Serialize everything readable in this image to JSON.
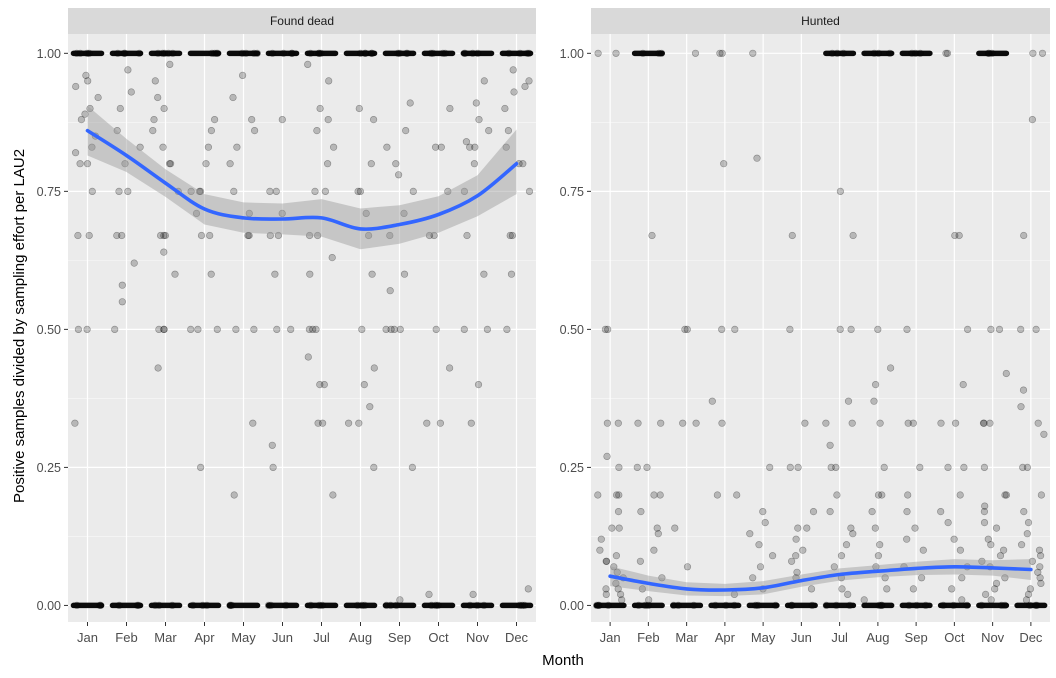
{
  "chart_data": {
    "type": "scatter",
    "ylabel": "Positive samples divided by sampling effort per LAU2",
    "xlabel": "Month",
    "categories": [
      "Jan",
      "Feb",
      "Mar",
      "Apr",
      "May",
      "Jun",
      "Jul",
      "Aug",
      "Sep",
      "Oct",
      "Nov",
      "Dec"
    ],
    "ylim": [
      -0.03,
      1.035
    ],
    "yticks": [
      0.0,
      0.25,
      0.5,
      0.75,
      1.0
    ],
    "ytick_labels": [
      "0.00",
      "0.25",
      "0.50",
      "0.75",
      "1.00"
    ],
    "grid": true,
    "colors": {
      "panel_bg": "#ebebeb",
      "strip_bg": "#d9d9d9",
      "grid_major": "#ffffff",
      "points": "#000000",
      "smooth_line": "#3366ff",
      "ribbon": "#999999"
    },
    "panels": [
      {
        "strip": "Found dead",
        "points": {
          "Jan": [
            1,
            1,
            1,
            1,
            0.96,
            0.95,
            0.94,
            0.92,
            0.9,
            0.89,
            0.88,
            0.85,
            0.83,
            0.82,
            0.8,
            0.8,
            0.75,
            0.67,
            0.67,
            0.5,
            0.5,
            0.33,
            0,
            0,
            0
          ],
          "Feb": [
            1,
            1,
            1,
            1,
            0.97,
            0.93,
            0.9,
            0.86,
            0.83,
            0.8,
            0.75,
            0.75,
            0.67,
            0.67,
            0.62,
            0.58,
            0.55,
            0.5,
            0,
            0,
            0
          ],
          "Mar": [
            1,
            1,
            1,
            1,
            1,
            0.98,
            0.95,
            0.92,
            0.9,
            0.88,
            0.86,
            0.83,
            0.8,
            0.8,
            0.75,
            0.67,
            0.67,
            0.67,
            0.64,
            0.6,
            0.5,
            0.5,
            0.5,
            0.43,
            0,
            0,
            0
          ],
          "Apr": [
            1,
            1,
            1,
            1,
            0.88,
            0.86,
            0.83,
            0.8,
            0.75,
            0.75,
            0.75,
            0.71,
            0.67,
            0.67,
            0.6,
            0.5,
            0.5,
            0.5,
            0.25,
            0,
            0,
            0
          ],
          "May": [
            1,
            1,
            1,
            1,
            0.96,
            0.92,
            0.88,
            0.86,
            0.83,
            0.8,
            0.75,
            0.71,
            0.67,
            0.67,
            0.5,
            0.5,
            0.33,
            0.2,
            0,
            0,
            0
          ],
          "Jun": [
            1,
            1,
            1,
            1,
            0.88,
            0.75,
            0.75,
            0.71,
            0.67,
            0.67,
            0.6,
            0.5,
            0.5,
            0.29,
            0.25,
            0,
            0,
            0
          ],
          "Jul": [
            1,
            1,
            1,
            1,
            0.98,
            0.95,
            0.9,
            0.88,
            0.86,
            0.83,
            0.8,
            0.75,
            0.75,
            0.67,
            0.67,
            0.63,
            0.6,
            0.5,
            0.5,
            0.5,
            0.45,
            0.4,
            0.4,
            0.33,
            0.33,
            0.2,
            0,
            0,
            0
          ],
          "Aug": [
            1,
            1,
            1,
            1,
            1,
            0.9,
            0.88,
            0.8,
            0.75,
            0.75,
            0.71,
            0.67,
            0.6,
            0.5,
            0.43,
            0.4,
            0.36,
            0.33,
            0.33,
            0.25,
            0,
            0,
            0
          ],
          "Sep": [
            1,
            1,
            1,
            1,
            0.91,
            0.86,
            0.83,
            0.8,
            0.78,
            0.75,
            0.71,
            0.67,
            0.6,
            0.57,
            0.5,
            0.5,
            0.5,
            0.5,
            0.25,
            0.01,
            0,
            0,
            0
          ],
          "Oct": [
            1,
            1,
            1,
            1,
            0.9,
            0.83,
            0.83,
            0.75,
            0.67,
            0.67,
            0.5,
            0.43,
            0.33,
            0.33,
            0.02,
            0,
            0,
            0
          ],
          "Nov": [
            1,
            1,
            1,
            1,
            0.95,
            0.91,
            0.88,
            0.86,
            0.84,
            0.83,
            0.83,
            0.8,
            0.75,
            0.67,
            0.6,
            0.5,
            0.5,
            0.4,
            0.33,
            0.02,
            0,
            0,
            0
          ],
          "Dec": [
            1,
            1,
            1,
            1,
            0.97,
            0.95,
            0.94,
            0.93,
            0.9,
            0.86,
            0.83,
            0.8,
            0.8,
            0.75,
            0.67,
            0.67,
            0.6,
            0.5,
            0.03,
            0,
            0,
            0
          ]
        },
        "smooth": [
          0.86,
          0.815,
          0.765,
          0.718,
          0.702,
          0.7,
          0.702,
          0.682,
          0.69,
          0.708,
          0.742,
          0.8
        ],
        "ribbon_lower": [
          0.815,
          0.785,
          0.74,
          0.69,
          0.675,
          0.672,
          0.668,
          0.645,
          0.655,
          0.675,
          0.705,
          0.745
        ],
        "ribbon_upper": [
          0.905,
          0.845,
          0.79,
          0.745,
          0.73,
          0.728,
          0.736,
          0.719,
          0.725,
          0.741,
          0.779,
          0.862
        ]
      },
      {
        "strip": "Hunted",
        "points": {
          "Jan": [
            1,
            1,
            0.5,
            0.5,
            0.33,
            0.33,
            0.27,
            0.25,
            0.2,
            0.2,
            0.2,
            0.17,
            0.14,
            0.14,
            0.12,
            0.1,
            0.09,
            0.08,
            0.08,
            0.07,
            0.06,
            0.05,
            0.04,
            0.03,
            0.03,
            0.02,
            0.02,
            0.01,
            0,
            0,
            0,
            0
          ],
          "Feb": [
            1,
            1,
            1,
            0.67,
            0.33,
            0.33,
            0.25,
            0.25,
            0.2,
            0.2,
            0.17,
            0.14,
            0.13,
            0.1,
            0.08,
            0.05,
            0.03,
            0.01,
            0,
            0,
            0
          ],
          "Mar": [
            1,
            0.5,
            0.5,
            0.33,
            0.33,
            0.14,
            0.07,
            0,
            0,
            0
          ],
          "Apr": [
            1,
            1,
            0.8,
            0.5,
            0.5,
            0.37,
            0.33,
            0.2,
            0.2,
            0.02,
            0,
            0,
            0
          ],
          "May": [
            1,
            0.81,
            0.25,
            0.17,
            0.15,
            0.13,
            0.11,
            0.09,
            0.07,
            0.05,
            0.03,
            0,
            0,
            0
          ],
          "Jun": [
            0.67,
            0.5,
            0.33,
            0.25,
            0.25,
            0.17,
            0.14,
            0.14,
            0.12,
            0.1,
            0.09,
            0.08,
            0.06,
            0.05,
            0.03,
            0,
            0,
            0
          ],
          "Jul": [
            1,
            1,
            1,
            0.75,
            0.67,
            0.5,
            0.5,
            0.37,
            0.33,
            0.33,
            0.29,
            0.25,
            0.25,
            0.2,
            0.17,
            0.14,
            0.13,
            0.11,
            0.09,
            0.07,
            0.05,
            0.03,
            0.02,
            0,
            0,
            0
          ],
          "Aug": [
            1,
            1,
            1,
            0.5,
            0.43,
            0.4,
            0.37,
            0.33,
            0.25,
            0.2,
            0.2,
            0.17,
            0.14,
            0.11,
            0.09,
            0.07,
            0.05,
            0.03,
            0.01,
            0,
            0,
            0
          ],
          "Sep": [
            1,
            1,
            1,
            0.5,
            0.33,
            0.33,
            0.25,
            0.2,
            0.17,
            0.14,
            0.12,
            0.1,
            0.07,
            0.05,
            0.03,
            0,
            0,
            0
          ],
          "Oct": [
            1,
            1,
            0.67,
            0.67,
            0.5,
            0.4,
            0.33,
            0.33,
            0.25,
            0.25,
            0.2,
            0.17,
            0.15,
            0.12,
            0.1,
            0.07,
            0.05,
            0.03,
            0.01,
            0,
            0,
            0
          ],
          "Nov": [
            1,
            1,
            1,
            0.5,
            0.5,
            0.42,
            0.33,
            0.33,
            0.33,
            0.25,
            0.2,
            0.2,
            0.18,
            0.17,
            0.15,
            0.14,
            0.12,
            0.11,
            0.1,
            0.09,
            0.08,
            0.07,
            0.05,
            0.04,
            0.03,
            0.02,
            0.01,
            0,
            0,
            0
          ],
          "Dec": [
            1,
            1,
            0.88,
            0.67,
            0.5,
            0.5,
            0.39,
            0.36,
            0.33,
            0.31,
            0.25,
            0.25,
            0.2,
            0.17,
            0.15,
            0.13,
            0.11,
            0.1,
            0.09,
            0.08,
            0.07,
            0.06,
            0.05,
            0.04,
            0.03,
            0.02,
            0.01,
            0,
            0,
            0
          ]
        },
        "smooth": [
          0.053,
          0.04,
          0.03,
          0.028,
          0.032,
          0.045,
          0.056,
          0.062,
          0.067,
          0.07,
          0.068,
          0.065
        ],
        "ribbon_lower": [
          0.035,
          0.026,
          0.018,
          0.017,
          0.02,
          0.034,
          0.045,
          0.051,
          0.055,
          0.056,
          0.054,
          0.046
        ],
        "ribbon_upper": [
          0.071,
          0.054,
          0.042,
          0.039,
          0.044,
          0.056,
          0.067,
          0.073,
          0.079,
          0.084,
          0.082,
          0.084
        ]
      }
    ]
  }
}
